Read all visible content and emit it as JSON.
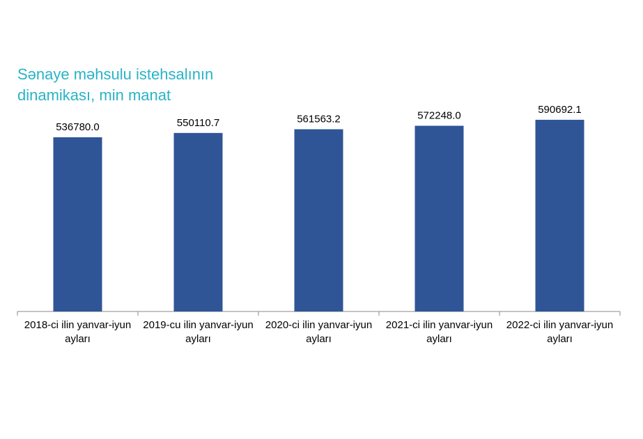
{
  "chart_data": {
    "type": "bar",
    "title": "Sənaye məhsulu istehsalının dinamikası, min manat",
    "categories": [
      "2018-ci ilin yanvar-iyun ayları",
      "2019-cu ilin yanvar-iyun ayları",
      "2020-ci ilin yanvar-iyun ayları",
      "2021-ci ilin yanvar-iyun ayları",
      "2022-ci ilin yanvar-iyun ayları"
    ],
    "values": [
      536780.0,
      550110.7,
      561563.2,
      572248.0,
      590692.1
    ],
    "value_labels": [
      "536780.0",
      "550110.7",
      "561563.2",
      "572248.0",
      "590692.1"
    ],
    "color": "#2f5597",
    "ylim": [
      0,
      700000
    ]
  }
}
